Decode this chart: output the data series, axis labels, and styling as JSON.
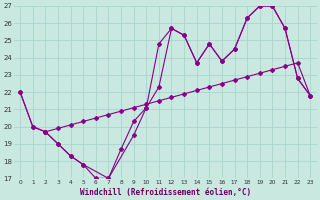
{
  "xlabel": "Windchill (Refroidissement éolien,°C)",
  "bg_color": "#c8e8e0",
  "line_color": "#880088",
  "grid_color": "#aad4cc",
  "xlim": [
    -0.5,
    23.5
  ],
  "ylim": [
    17,
    27
  ],
  "xticks": [
    0,
    1,
    2,
    3,
    4,
    5,
    6,
    7,
    8,
    9,
    10,
    11,
    12,
    13,
    14,
    15,
    16,
    17,
    18,
    19,
    20,
    21,
    22,
    23
  ],
  "yticks": [
    17,
    18,
    19,
    20,
    21,
    22,
    23,
    24,
    25,
    26,
    27
  ],
  "line1_x": [
    0,
    1,
    2,
    3,
    4,
    5,
    6,
    7,
    8,
    9,
    10,
    11,
    12,
    13,
    14,
    15,
    16,
    17,
    18,
    19,
    20,
    21,
    22,
    23
  ],
  "line1_y": [
    22,
    20,
    19.7,
    19,
    18.3,
    17.8,
    17,
    17,
    18.7,
    20.3,
    21.1,
    22.3,
    25.7,
    25.3,
    23.7,
    24.8,
    23.8,
    24.5,
    26.3,
    27,
    27,
    25.7,
    22.8,
    21.8
  ],
  "line2_x": [
    2,
    3,
    4,
    5,
    6,
    7,
    8,
    9,
    10,
    11,
    12,
    13,
    14,
    15,
    16,
    17,
    18,
    19,
    20,
    21,
    22,
    23
  ],
  "line2_y": [
    19.7,
    19.9,
    20.1,
    20.3,
    20.5,
    20.7,
    20.9,
    21.1,
    21.3,
    21.5,
    21.7,
    21.9,
    22.1,
    22.3,
    22.5,
    22.7,
    22.9,
    23.1,
    23.3,
    23.5,
    23.7,
    21.8
  ],
  "line3_x": [
    0,
    1,
    2,
    3,
    4,
    5,
    7,
    9,
    10,
    11,
    12,
    13,
    14,
    15,
    16,
    17,
    18,
    19,
    20,
    21,
    22,
    23
  ],
  "line3_y": [
    22,
    20,
    19.7,
    19,
    18.3,
    17.8,
    17,
    19.5,
    21.1,
    24.8,
    25.7,
    25.3,
    23.7,
    24.8,
    23.8,
    24.5,
    26.3,
    27,
    27,
    25.7,
    22.8,
    21.8
  ]
}
